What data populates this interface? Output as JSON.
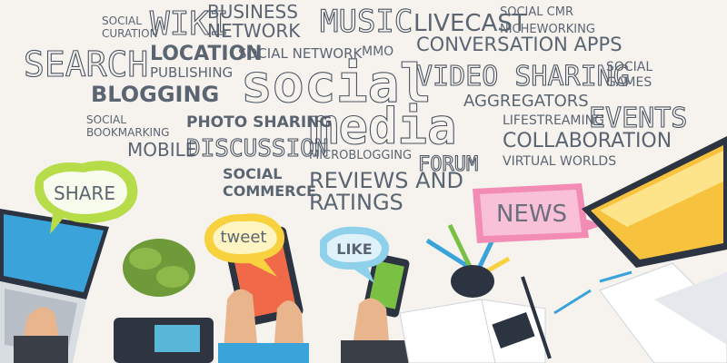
{
  "words": [
    {
      "lines": [
        "SOCIAL",
        "CURATION"
      ]
    },
    {
      "lines": [
        "WIKI"
      ]
    },
    {
      "lines": [
        "BUSINESS",
        "NETWORK"
      ]
    },
    {
      "lines": [
        "MUSIC"
      ]
    },
    {
      "lines": [
        "LIVECAST"
      ]
    },
    {
      "lines": [
        "SOCIAL CMR"
      ]
    },
    {
      "lines": [
        "NICHEWORKING"
      ]
    },
    {
      "lines": [
        "SEARCH"
      ]
    },
    {
      "lines": [
        "LOCATION"
      ]
    },
    {
      "lines": [
        "SOCIAL NETWORK"
      ]
    },
    {
      "lines": [
        "MMO"
      ]
    },
    {
      "lines": [
        "CONVERSATION APPS"
      ]
    },
    {
      "lines": [
        "PUBLISHING"
      ]
    },
    {
      "lines": [
        "social"
      ]
    },
    {
      "lines": [
        "VIDEO SHARING"
      ]
    },
    {
      "lines": [
        "SOCIAL",
        "GAMES"
      ]
    },
    {
      "lines": [
        "BLOGGING"
      ]
    },
    {
      "lines": [
        "AGGREGATORS"
      ]
    },
    {
      "lines": [
        "SOCIAL",
        "BOOKMARKING"
      ]
    },
    {
      "lines": [
        "PHOTO SHARING"
      ]
    },
    {
      "lines": [
        "media"
      ]
    },
    {
      "lines": [
        "LIFESTREAMING"
      ]
    },
    {
      "lines": [
        "EVENTS"
      ]
    },
    {
      "lines": [
        "COLLABORATION"
      ]
    },
    {
      "lines": [
        "MOBILE"
      ]
    },
    {
      "lines": [
        "DISCUSSION"
      ]
    },
    {
      "lines": [
        "MICROBLOGGING"
      ]
    },
    {
      "lines": [
        "FORUM"
      ]
    },
    {
      "lines": [
        "VIRTUAL WORLDS"
      ]
    },
    {
      "lines": [
        "SOCIAL",
        "COMMERCE"
      ]
    },
    {
      "lines": [
        "REVIEWS AND",
        "RATINGS"
      ]
    }
  ],
  "bubbles": [
    "SHARE",
    "tweet",
    "LIKE",
    "NEWS"
  ]
}
